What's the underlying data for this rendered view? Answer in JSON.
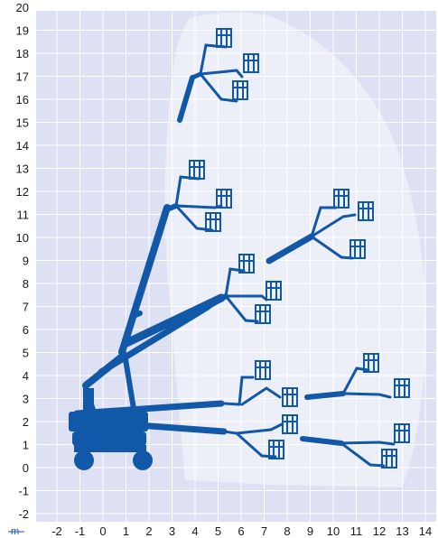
{
  "diagram": {
    "x_ticks": [
      "-2",
      "-1",
      "0",
      "1",
      "2",
      "3",
      "4",
      "5",
      "6",
      "7",
      "8",
      "9",
      "10",
      "11",
      "12",
      "13",
      "14"
    ],
    "y_ticks": [
      "20",
      "19",
      "18",
      "17",
      "16",
      "15",
      "14",
      "13",
      "12",
      "11",
      "10",
      "9",
      "8",
      "7",
      "6",
      "5",
      "4",
      "3",
      "2",
      "1",
      "0",
      "-1",
      "-2"
    ],
    "origin_symbol": "m",
    "x_range": [
      -2,
      14
    ],
    "y_range": [
      -2,
      20
    ],
    "grid": true,
    "colors": {
      "background": "#dde1f3",
      "envelope": "#eceef8",
      "grid": "#ffffff",
      "machine": "#1258a8",
      "tick_text": "#1a1a1a"
    }
  }
}
